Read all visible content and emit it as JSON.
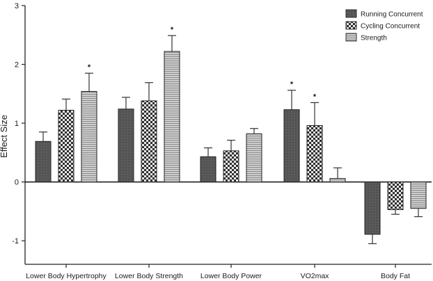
{
  "chart_data": {
    "type": "bar",
    "ylabel": "Effect Size",
    "xlabel": "",
    "ylim": [
      -1.4,
      3
    ],
    "yticks": [
      -1,
      0,
      1,
      2,
      3
    ],
    "legend_position": "top-right",
    "grid": false,
    "categories": [
      "Lower Body Hypertrophy",
      "Lower Body Strength",
      "Lower Body Power",
      "VO2max",
      "Body Fat"
    ],
    "significance_marker": "*",
    "series": [
      {
        "name": "Running Concurrent",
        "pattern": "solid-dark",
        "color": "#555555",
        "values": [
          0.69,
          1.24,
          0.43,
          1.23,
          -0.89
        ],
        "errors": [
          0.16,
          0.2,
          0.15,
          0.33,
          0.16
        ],
        "significant": [
          false,
          false,
          false,
          true,
          false
        ]
      },
      {
        "name": "Cycling Concurrent",
        "pattern": "checker",
        "color": "#333333",
        "values": [
          1.22,
          1.38,
          0.53,
          0.96,
          -0.47
        ],
        "errors": [
          0.19,
          0.31,
          0.18,
          0.39,
          0.08
        ],
        "significant": [
          false,
          false,
          false,
          true,
          false
        ]
      },
      {
        "name": "Strength",
        "pattern": "horizontal-stripes",
        "color": "#999999",
        "values": [
          1.54,
          2.22,
          0.82,
          0.06,
          -0.45
        ],
        "errors": [
          0.31,
          0.27,
          0.09,
          0.18,
          0.14
        ],
        "significant": [
          true,
          true,
          false,
          false,
          false
        ]
      }
    ]
  }
}
